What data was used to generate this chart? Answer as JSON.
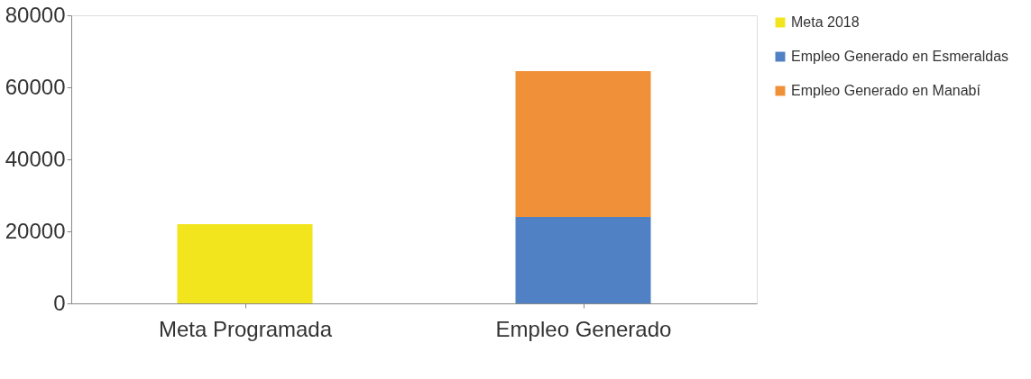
{
  "chart_data": {
    "type": "bar",
    "stacked": true,
    "categories": [
      "Meta Programada",
      "Empleo Generado"
    ],
    "series": [
      {
        "name": "Meta 2018",
        "color": "#f2e51e",
        "values": [
          22000,
          null
        ]
      },
      {
        "name": "Empleo Generado en Esmeraldas",
        "color": "#4f81c4",
        "values": [
          null,
          24000
        ]
      },
      {
        "name": "Empleo Generado en Manabí",
        "color": "#f0913a",
        "values": [
          null,
          40500
        ]
      }
    ],
    "ylim": [
      0,
      80000
    ],
    "yticks": [
      0,
      20000,
      40000,
      60000,
      80000
    ],
    "grid": false,
    "legend": "right"
  }
}
